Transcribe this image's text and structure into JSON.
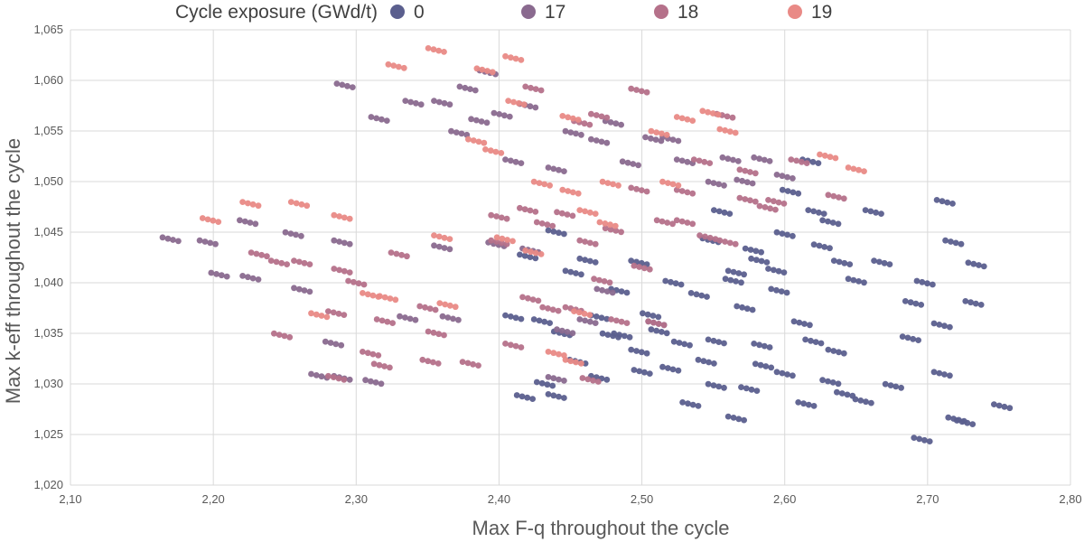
{
  "chart_data": {
    "type": "scatter",
    "title": "",
    "xlabel": "Max F-q throughout the cycle",
    "ylabel": "Max k-eff throughout the cycle",
    "xlim": [
      2.1,
      2.8
    ],
    "ylim": [
      1.02,
      1.065
    ],
    "x_ticks": [
      "2,10",
      "2,20",
      "2,30",
      "2,40",
      "2,50",
      "2,60",
      "2,70",
      "2,80"
    ],
    "y_ticks": [
      "1,020",
      "1,025",
      "1,030",
      "1,035",
      "1,040",
      "1,045",
      "1,050",
      "1,055",
      "1,060",
      "1,065"
    ],
    "grid": true,
    "legend": {
      "title": "Cycle exposure (GWd/t)",
      "position": "top",
      "entries": [
        {
          "name": "0",
          "color": "#5b5f8e"
        },
        {
          "name": "17",
          "color": "#8a6a8f"
        },
        {
          "name": "18",
          "color": "#b5718a"
        },
        {
          "name": "19",
          "color": "#e98a86"
        }
      ]
    },
    "series": [
      {
        "name": "0",
        "color": "#5b5f8e",
        "clusters": [
          [
            2.418,
            1.0287
          ],
          [
            2.432,
            1.03
          ],
          [
            2.44,
            1.0288
          ],
          [
            2.455,
            1.0322
          ],
          [
            2.47,
            1.0306
          ],
          [
            2.486,
            1.0348
          ],
          [
            2.498,
            1.0332
          ],
          [
            2.5,
            1.0312
          ],
          [
            2.51,
            1.036
          ],
          [
            2.52,
            1.0315
          ],
          [
            2.534,
            1.028
          ],
          [
            2.545,
            1.0322
          ],
          [
            2.552,
            1.0298
          ],
          [
            2.566,
            1.0266
          ],
          [
            2.575,
            1.0295
          ],
          [
            2.585,
            1.0318
          ],
          [
            2.6,
            1.031
          ],
          [
            2.615,
            1.028
          ],
          [
            2.632,
            1.0302
          ],
          [
            2.642,
            1.029
          ],
          [
            2.655,
            1.0283
          ],
          [
            2.676,
            1.0298
          ],
          [
            2.696,
            1.0245
          ],
          [
            2.71,
            1.031
          ],
          [
            2.726,
            1.0262
          ],
          [
            2.752,
            1.0278
          ],
          [
            2.72,
            1.0265
          ],
          [
            2.43,
            1.0362
          ],
          [
            2.444,
            1.035
          ],
          [
            2.452,
            1.041
          ],
          [
            2.462,
            1.0422
          ],
          [
            2.47,
            1.0366
          ],
          [
            2.484,
            1.0392
          ],
          [
            2.506,
            1.0368
          ],
          [
            2.522,
            1.04
          ],
          [
            2.54,
            1.0388
          ],
          [
            2.552,
            1.0342
          ],
          [
            2.564,
            1.0402
          ],
          [
            2.578,
            1.0432
          ],
          [
            2.584,
            1.0338
          ],
          [
            2.594,
            1.0412
          ],
          [
            2.6,
            1.0448
          ],
          [
            2.612,
            1.036
          ],
          [
            2.622,
            1.047
          ],
          [
            2.632,
            1.046
          ],
          [
            2.64,
            1.042
          ],
          [
            2.65,
            1.0402
          ],
          [
            2.662,
            1.047
          ],
          [
            2.668,
            1.042
          ],
          [
            2.69,
            1.038
          ],
          [
            2.698,
            1.04
          ],
          [
            2.71,
            1.0358
          ],
          [
            2.718,
            1.044
          ],
          [
            2.732,
            1.038
          ],
          [
            2.734,
            1.0418
          ],
          [
            2.712,
            1.048
          ],
          [
            2.42,
            1.0426
          ],
          [
            2.44,
            1.045
          ],
          [
            2.41,
            1.0366
          ],
          [
            2.548,
            1.0442
          ],
          [
            2.556,
            1.047
          ],
          [
            2.582,
            1.0422
          ],
          [
            2.604,
            1.049
          ],
          [
            2.618,
            1.052
          ],
          [
            2.626,
            1.0436
          ],
          [
            2.478,
            1.0348
          ],
          [
            2.512,
            1.0352
          ],
          [
            2.528,
            1.034
          ],
          [
            2.566,
            1.041
          ],
          [
            2.596,
            1.0392
          ],
          [
            2.636,
            1.0332
          ],
          [
            2.688,
            1.0345
          ],
          [
            2.572,
            1.0375
          ],
          [
            2.62,
            1.0342
          ],
          [
            2.498,
            1.042
          ]
        ]
      },
      {
        "name": "17",
        "color": "#8a6a8f",
        "clusters": [
          [
            2.17,
            1.0443
          ],
          [
            2.196,
            1.044
          ],
          [
            2.204,
            1.0408
          ],
          [
            2.226,
            1.0405
          ],
          [
            2.224,
            1.046
          ],
          [
            2.256,
            1.0448
          ],
          [
            2.262,
            1.0393
          ],
          [
            2.274,
            1.0308
          ],
          [
            2.29,
            1.0306
          ],
          [
            2.292,
            1.0595
          ],
          [
            2.312,
            1.0302
          ],
          [
            2.316,
            1.0562
          ],
          [
            2.34,
            1.0578
          ],
          [
            2.36,
            1.0578
          ],
          [
            2.378,
            1.0592
          ],
          [
            2.372,
            1.0548
          ],
          [
            2.392,
            1.0608
          ],
          [
            2.386,
            1.056
          ],
          [
            2.402,
            1.0566
          ],
          [
            2.41,
            1.052
          ],
          [
            2.42,
            1.0575
          ],
          [
            2.44,
            1.0512
          ],
          [
            2.452,
            1.0548
          ],
          [
            2.47,
            1.054
          ],
          [
            2.48,
            1.0558
          ],
          [
            2.492,
            1.0518
          ],
          [
            2.508,
            1.0542
          ],
          [
            2.52,
            1.0542
          ],
          [
            2.53,
            1.052
          ],
          [
            2.552,
            1.0498
          ],
          [
            2.562,
            1.0522
          ],
          [
            2.572,
            1.05
          ],
          [
            2.584,
            1.0522
          ],
          [
            2.6,
            1.0505
          ],
          [
            2.36,
            1.0435
          ],
          [
            2.398,
            1.0438
          ],
          [
            2.422,
            1.0432
          ],
          [
            2.366,
            1.0365
          ],
          [
            2.336,
            1.0365
          ],
          [
            2.446,
            1.0352
          ],
          [
            2.44,
            1.0305
          ],
          [
            2.462,
            1.0362
          ],
          [
            2.474,
            1.0392
          ],
          [
            2.29,
            1.044
          ],
          [
            2.284,
            1.034
          ]
        ]
      },
      {
        "name": "18",
        "color": "#b5718a",
        "clusters": [
          [
            2.232,
            1.0428
          ],
          [
            2.246,
            1.042
          ],
          [
            2.262,
            1.042
          ],
          [
            2.248,
            1.0348
          ],
          [
            2.29,
            1.0412
          ],
          [
            2.3,
            1.04
          ],
          [
            2.286,
            1.037
          ],
          [
            2.31,
            1.033
          ],
          [
            2.318,
            1.0318
          ],
          [
            2.33,
            1.0428
          ],
          [
            2.32,
            1.0362
          ],
          [
            2.356,
            1.035
          ],
          [
            2.352,
            1.0322
          ],
          [
            2.38,
            1.032
          ],
          [
            2.4,
            1.044
          ],
          [
            2.4,
            1.0465
          ],
          [
            2.41,
            1.0338
          ],
          [
            2.422,
            1.0384
          ],
          [
            2.436,
            1.0374
          ],
          [
            2.452,
            1.0374
          ],
          [
            2.464,
            1.0304
          ],
          [
            2.472,
            1.0402
          ],
          [
            2.484,
            1.0362
          ],
          [
            2.5,
            1.0415
          ],
          [
            2.51,
            1.036
          ],
          [
            2.53,
            1.046
          ],
          [
            2.546,
            1.0445
          ],
          [
            2.56,
            1.044
          ],
          [
            2.574,
            1.0482
          ],
          [
            2.588,
            1.0474
          ],
          [
            2.446,
            1.0468
          ],
          [
            2.462,
            1.044
          ],
          [
            2.48,
            1.0452
          ],
          [
            2.498,
            1.0492
          ],
          [
            2.516,
            1.046
          ],
          [
            2.42,
            1.0472
          ],
          [
            2.53,
            1.049
          ],
          [
            2.542,
            1.052
          ],
          [
            2.558,
            1.0565
          ],
          [
            2.574,
            1.051
          ],
          [
            2.594,
            1.048
          ],
          [
            2.61,
            1.052
          ],
          [
            2.458,
            1.0558
          ],
          [
            2.498,
            1.059
          ],
          [
            2.47,
            1.0565
          ],
          [
            2.424,
            1.0592
          ],
          [
            2.35,
            1.0375
          ],
          [
            2.286,
            1.0306
          ],
          [
            2.432,
            1.0458
          ],
          [
            2.636,
            1.0485
          ]
        ]
      },
      {
        "name": "19",
        "color": "#e98a86",
        "clusters": [
          [
            2.198,
            1.0462
          ],
          [
            2.226,
            1.0478
          ],
          [
            2.26,
            1.0478
          ],
          [
            2.29,
            1.0465
          ],
          [
            2.274,
            1.0368
          ],
          [
            2.31,
            1.0388
          ],
          [
            2.322,
            1.0385
          ],
          [
            2.328,
            1.0614
          ],
          [
            2.356,
            1.063
          ],
          [
            2.36,
            1.0445
          ],
          [
            2.364,
            1.0378
          ],
          [
            2.39,
            1.061
          ],
          [
            2.41,
            1.0622
          ],
          [
            2.412,
            1.0578
          ],
          [
            2.404,
            1.0443
          ],
          [
            2.424,
            1.043
          ],
          [
            2.44,
            1.033
          ],
          [
            2.45,
            1.0563
          ],
          [
            2.462,
            1.047
          ],
          [
            2.476,
            1.0458
          ],
          [
            2.458,
            1.037
          ],
          [
            2.53,
            1.0562
          ],
          [
            2.548,
            1.0568
          ],
          [
            2.56,
            1.055
          ],
          [
            2.63,
            1.0525
          ],
          [
            2.65,
            1.0512
          ],
          [
            2.512,
            1.0548
          ],
          [
            2.43,
            1.0498
          ],
          [
            2.45,
            1.049
          ],
          [
            2.478,
            1.0498
          ],
          [
            2.52,
            1.0498
          ],
          [
            2.396,
            1.053
          ],
          [
            2.452,
            1.0322
          ],
          [
            2.384,
            1.054
          ]
        ]
      }
    ]
  }
}
